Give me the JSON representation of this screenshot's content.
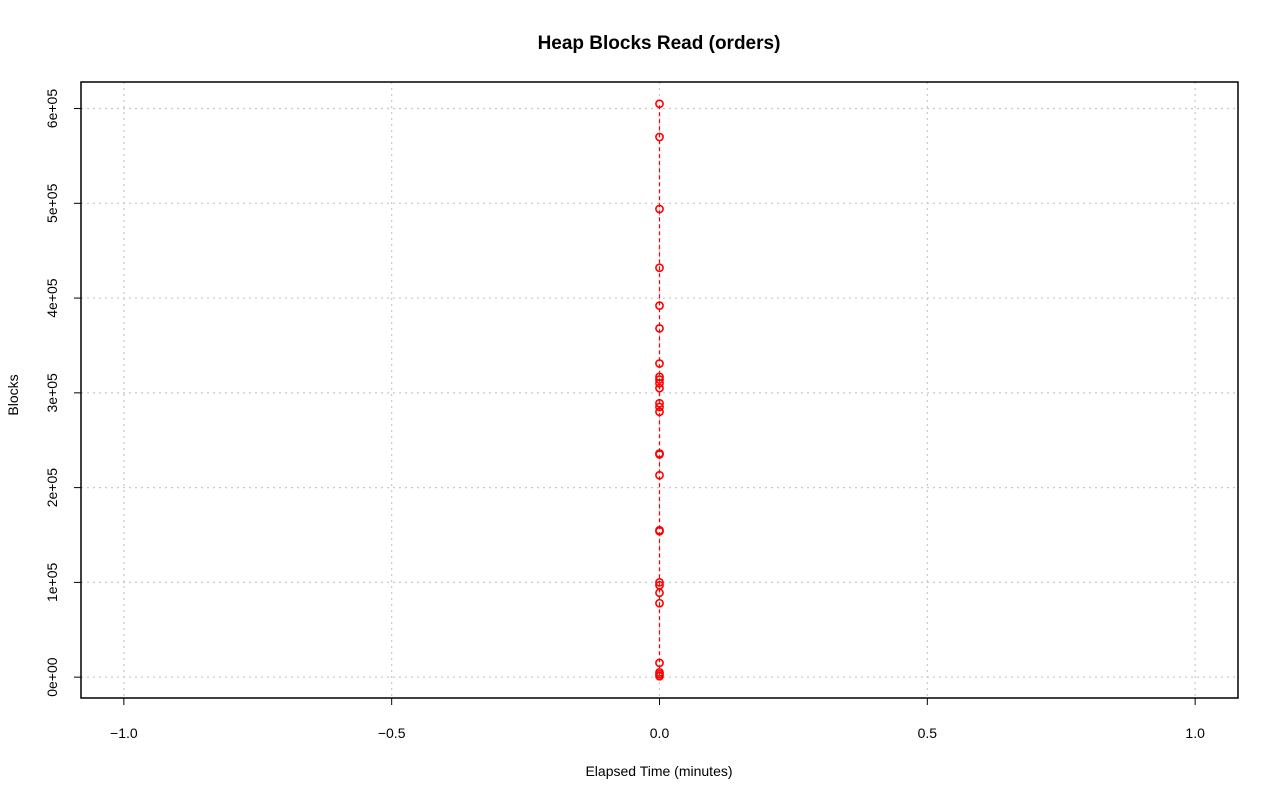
{
  "chart_data": {
    "type": "line",
    "title": "Heap Blocks Read (orders)",
    "xlabel": "Elapsed Time (minutes)",
    "ylabel": "Blocks",
    "xlim": [
      -1.08,
      1.08
    ],
    "ylim": [
      -22000,
      628000
    ],
    "x_ticks": [
      -1.0,
      -0.5,
      0.0,
      0.5,
      1.0
    ],
    "x_tick_labels": [
      "−1.0",
      "−0.5",
      "0.0",
      "0.5",
      "1.0"
    ],
    "y_ticks": [
      0,
      100000,
      200000,
      300000,
      400000,
      500000,
      600000
    ],
    "y_tick_labels": [
      "0e+00",
      "1e+05",
      "2e+05",
      "3e+05",
      "4e+05",
      "5e+05",
      "6e+05"
    ],
    "grid": true,
    "colors": {
      "series": "#ff0000",
      "grid": "#c8c8c8",
      "frame": "#000000"
    },
    "series": [
      {
        "line_style": "dashed",
        "marker": "open-circle",
        "x": [
          0,
          0,
          0,
          0,
          0,
          0,
          0,
          0,
          0,
          0,
          0,
          0,
          0,
          0,
          0,
          0,
          0,
          0,
          0,
          0,
          0,
          0,
          0,
          0,
          0,
          0,
          0
        ],
        "y": [
          1000,
          3000,
          5000,
          15000,
          78000,
          89000,
          97000,
          100000,
          154000,
          155000,
          213000,
          235000,
          236000,
          280000,
          285000,
          289000,
          305000,
          310000,
          314000,
          317000,
          331000,
          368000,
          392000,
          432000,
          494000,
          570000,
          605000
        ]
      }
    ]
  }
}
